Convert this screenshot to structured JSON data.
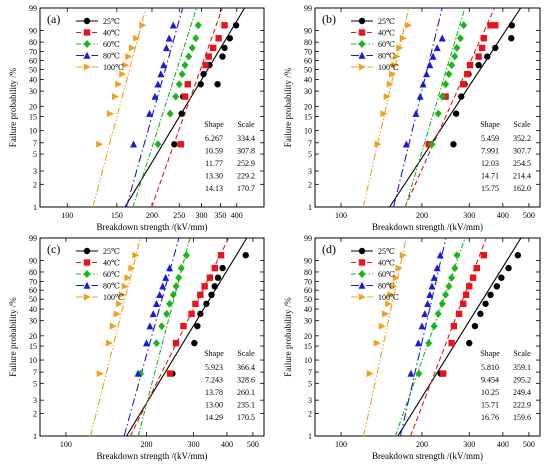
{
  "chart_data": [
    {
      "type": "scatter",
      "panel_label": "(a)",
      "xlabel": "Breakdown strength /(kV/mm)",
      "ylabel": "Failure probability /%",
      "x_scale": "log",
      "y_scale": "weibull",
      "xlim": [
        80,
        500
      ],
      "ylim": [
        1,
        99
      ],
      "x_ticks": [
        100,
        150,
        200,
        250,
        300,
        350,
        400
      ],
      "y_ticks": [
        1,
        2,
        3,
        5,
        7,
        10,
        15,
        20,
        30,
        40,
        50,
        60,
        70,
        80,
        90,
        99
      ],
      "table_headers": [
        "Shape",
        "Scale"
      ],
      "series": [
        {
          "name": "25℃",
          "color": "#000000",
          "marker": "circle",
          "shape": 6.267,
          "scale": 334.4,
          "x": [
            240,
            255,
            258,
            298,
            305,
            320,
            342,
            356,
            362,
            378,
            398
          ],
          "y": [
            6.7,
            16.3,
            26.0,
            35.6,
            45.2,
            54.8,
            35.6,
            64.4,
            74.0,
            83.7,
            93.3
          ]
        },
        {
          "name": "40℃",
          "color": "#e8141b",
          "marker": "square",
          "shape": 10.59,
          "scale": 307.8,
          "x": [
            253,
            262,
            268,
            310,
            318,
            330,
            345,
            362
          ],
          "y": [
            6.7,
            26.0,
            35.6,
            54.8,
            64.4,
            74.0,
            83.7,
            93.3
          ]
        },
        {
          "name": "60℃",
          "color": "#1db31d",
          "marker": "diamond",
          "shape": 11.77,
          "scale": 252.9,
          "x": [
            210,
            232,
            243,
            250,
            256,
            262,
            270,
            278,
            286,
            292
          ],
          "y": [
            6.7,
            16.3,
            26.0,
            35.6,
            45.2,
            54.8,
            64.4,
            74.0,
            83.7,
            93.3
          ]
        },
        {
          "name": "80℃",
          "color": "#1a1adb",
          "marker": "triangle-up",
          "shape": 13.3,
          "scale": 229.2,
          "x": [
            172,
            196,
            205,
            210,
            215,
            220,
            225,
            230,
            238
          ],
          "y": [
            6.7,
            16.3,
            26.0,
            35.6,
            45.2,
            54.8,
            74.0,
            83.7,
            93.3
          ]
        },
        {
          "name": "100℃",
          "color": "#f0a01e",
          "marker": "triangle-right",
          "shape": 14.13,
          "scale": 170.7,
          "x": [
            130,
            142,
            148,
            152,
            157,
            161,
            165,
            170,
            176,
            185
          ],
          "y": [
            6.7,
            16.3,
            26.0,
            35.6,
            45.2,
            54.8,
            64.4,
            74.0,
            83.7,
            93.3
          ]
        }
      ]
    },
    {
      "type": "scatter",
      "panel_label": "(b)",
      "xlabel": "Breakdown strength /(kV/mm)",
      "ylabel": "Failure probability /%",
      "x_scale": "log",
      "y_scale": "weibull",
      "xlim": [
        80,
        550
      ],
      "ylim": [
        1,
        99
      ],
      "x_ticks": [
        100,
        200,
        300,
        400,
        500
      ],
      "y_ticks": [
        1,
        2,
        3,
        5,
        7,
        10,
        15,
        20,
        30,
        40,
        50,
        60,
        70,
        80,
        90,
        99
      ],
      "table_headers": [
        "Shape",
        "Scale"
      ],
      "series": [
        {
          "name": "25℃",
          "color": "#000000",
          "marker": "circle",
          "shape": 5.459,
          "scale": 352.2,
          "x": [
            262,
            268,
            280,
            288,
            298,
            325,
            350,
            375,
            430,
            432
          ],
          "y": [
            6.7,
            16.3,
            26.0,
            35.6,
            45.2,
            54.8,
            64.4,
            74.0,
            83.7,
            93.3
          ]
        },
        {
          "name": "40℃",
          "color": "#e8141b",
          "marker": "square",
          "shape": 7.991,
          "scale": 307.7,
          "x": [
            212,
            245,
            285,
            295,
            302,
            325,
            335,
            340,
            360,
            375
          ],
          "y": [
            6.7,
            26.0,
            35.6,
            45.2,
            54.8,
            64.4,
            74.0,
            83.7,
            93.3,
            93.3
          ]
        },
        {
          "name": "60℃",
          "color": "#1db31d",
          "marker": "diamond",
          "shape": 12.03,
          "scale": 254.5,
          "x": [
            218,
            230,
            238,
            245,
            252,
            258,
            265,
            270,
            278,
            286
          ],
          "y": [
            6.7,
            16.3,
            26.0,
            35.6,
            45.2,
            54.8,
            64.4,
            74.0,
            83.7,
            93.3
          ]
        },
        {
          "name": "80℃",
          "color": "#1a1adb",
          "marker": "triangle-up",
          "shape": 14.71,
          "scale": 214.4,
          "x": [
            175,
            190,
            197,
            202,
            208,
            214,
            220,
            228,
            238
          ],
          "y": [
            6.7,
            16.3,
            26.0,
            35.6,
            45.2,
            54.8,
            64.4,
            74.0,
            83.7
          ]
        },
        {
          "name": "100℃",
          "color": "#f0a01e",
          "marker": "triangle-right",
          "shape": 15.75,
          "scale": 162.0,
          "x": [
            137,
            144,
            148,
            152,
            155,
            158,
            161,
            165,
            170,
            178
          ],
          "y": [
            6.7,
            16.3,
            26.0,
            35.6,
            45.2,
            54.8,
            64.4,
            74.0,
            83.7,
            93.3
          ]
        }
      ]
    },
    {
      "type": "scatter",
      "panel_label": "(c)",
      "xlabel": "Breakdown strength /(kV/mm)",
      "ylabel": "Failure probability /%",
      "x_scale": "log",
      "y_scale": "weibull",
      "xlim": [
        80,
        550
      ],
      "ylim": [
        1,
        99
      ],
      "x_ticks": [
        100,
        200,
        300,
        400,
        500
      ],
      "y_ticks": [
        1,
        2,
        3,
        5,
        7,
        10,
        15,
        20,
        30,
        40,
        50,
        60,
        70,
        80,
        90,
        99
      ],
      "table_headers": [
        "Shape",
        "Scale"
      ],
      "series": [
        {
          "name": "25℃",
          "color": "#000000",
          "marker": "circle",
          "shape": 5.923,
          "scale": 366.4,
          "x": [
            250,
            302,
            310,
            318,
            335,
            350,
            360,
            370,
            385,
            470
          ],
          "y": [
            6.7,
            16.3,
            26.0,
            35.6,
            45.2,
            54.8,
            64.4,
            74.0,
            83.7,
            93.3
          ]
        },
        {
          "name": "40℃",
          "color": "#e8141b",
          "marker": "square",
          "shape": 7.243,
          "scale": 328.6,
          "x": [
            245,
            258,
            275,
            295,
            305,
            318,
            330,
            345,
            360,
            380
          ],
          "y": [
            6.7,
            16.3,
            26.0,
            35.6,
            45.2,
            54.8,
            64.4,
            74.0,
            83.7,
            93.3
          ]
        },
        {
          "name": "60℃",
          "color": "#1db31d",
          "marker": "diamond",
          "shape": 13.78,
          "scale": 260.1,
          "x": [
            190,
            218,
            228,
            238,
            244,
            252,
            258,
            264,
            270,
            282
          ],
          "y": [
            6.7,
            16.3,
            26.0,
            35.6,
            45.2,
            54.8,
            64.4,
            74.0,
            83.7,
            93.3
          ]
        },
        {
          "name": "80℃",
          "color": "#1a1adb",
          "marker": "triangle-up",
          "shape": 13.0,
          "scale": 235.1,
          "x": [
            186,
            200,
            206,
            212,
            218,
            224,
            230,
            236,
            244
          ],
          "y": [
            6.7,
            16.3,
            26.0,
            35.6,
            45.2,
            54.8,
            64.4,
            74.0,
            83.7
          ]
        },
        {
          "name": "100℃",
          "color": "#f0a01e",
          "marker": "triangle-right",
          "shape": 14.29,
          "scale": 170.5,
          "x": [
            134,
            145,
            150,
            155,
            158,
            162,
            166,
            170,
            176,
            182
          ],
          "y": [
            6.7,
            16.3,
            26.0,
            35.6,
            45.2,
            54.8,
            64.4,
            74.0,
            83.7,
            93.3
          ]
        }
      ]
    },
    {
      "type": "scatter",
      "panel_label": "(d)",
      "xlabel": "Breakdown strength /(kV/mm)",
      "ylabel": "Failure probability /%",
      "x_scale": "log",
      "y_scale": "weibull",
      "xlim": [
        80,
        550
      ],
      "ylim": [
        1,
        99
      ],
      "x_ticks": [
        100,
        200,
        300,
        400,
        500
      ],
      "y_ticks": [
        1,
        2,
        3,
        5,
        7,
        10,
        15,
        20,
        30,
        40,
        50,
        60,
        70,
        80,
        90,
        99
      ],
      "table_headers": [
        "Shape",
        "Scale"
      ],
      "series": [
        {
          "name": "25℃",
          "color": "#000000",
          "marker": "circle",
          "shape": 5.81,
          "scale": 359.1,
          "x": [
            235,
            300,
            315,
            330,
            345,
            360,
            380,
            395,
            420,
            455
          ],
          "y": [
            6.7,
            16.3,
            26.0,
            35.6,
            45.2,
            54.8,
            64.4,
            74.0,
            83.7,
            93.3
          ]
        },
        {
          "name": "40℃",
          "color": "#e8141b",
          "marker": "square",
          "shape": 9.454,
          "scale": 295.2,
          "x": [
            240,
            258,
            263,
            275,
            285,
            292,
            300,
            310,
            320,
            340
          ],
          "y": [
            6.7,
            16.3,
            26.0,
            35.6,
            45.2,
            54.8,
            64.4,
            74.0,
            83.7,
            93.3
          ]
        },
        {
          "name": "60℃",
          "color": "#1db31d",
          "marker": "diamond",
          "shape": 10.25,
          "scale": 249.4,
          "x": [
            195,
            212,
            222,
            230,
            238,
            245,
            252,
            258,
            265,
            270
          ],
          "y": [
            6.7,
            16.3,
            26.0,
            35.6,
            45.2,
            54.8,
            64.4,
            74.0,
            83.7,
            93.3
          ]
        },
        {
          "name": "80℃",
          "color": "#1a1adb",
          "marker": "triangle-up",
          "shape": 15.71,
          "scale": 222.9,
          "x": [
            182,
            194,
            200,
            205,
            210,
            214,
            218,
            222,
            228,
            234
          ],
          "y": [
            6.7,
            16.3,
            26.0,
            35.6,
            45.2,
            54.8,
            64.4,
            74.0,
            83.7,
            93.3
          ]
        },
        {
          "name": "100℃",
          "color": "#f0a01e",
          "marker": "triangle-right",
          "shape": 16.76,
          "scale": 159.6,
          "x": [
            128,
            136,
            142,
            146,
            150,
            153,
            156,
            160,
            164,
            170
          ],
          "y": [
            6.7,
            16.3,
            26.0,
            35.6,
            45.2,
            54.8,
            64.4,
            74.0,
            83.7,
            93.3
          ]
        }
      ]
    }
  ]
}
